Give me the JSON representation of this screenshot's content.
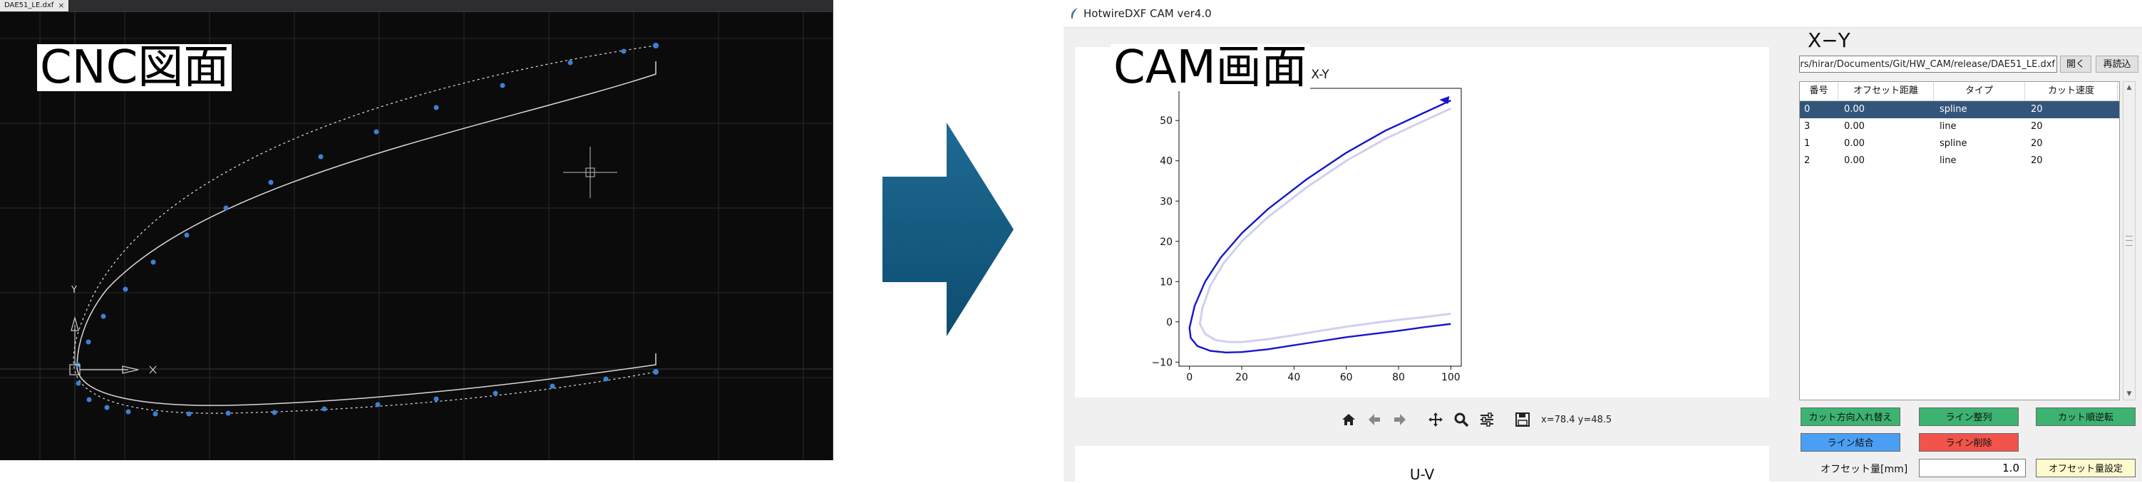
{
  "cad": {
    "tab_label": "DAE51_LE.dxf",
    "tab_close": "×",
    "caption": "CNC図面",
    "axis_y": "Y",
    "axis_x": "X"
  },
  "cam": {
    "window_title": "HotwireDXF CAM ver4.0",
    "caption": "CAM画面",
    "side_title": "X−Y",
    "file_path": "rs/hirar/Documents/Git/HW_CAM/release/DAE51_LE.dxf",
    "open_button": "開く",
    "reload_button": "再読込",
    "table": {
      "headers": [
        "番号",
        "オフセット距離",
        "タイプ",
        "カット速度"
      ],
      "rows": [
        [
          "0",
          "0.00",
          "spline",
          "20"
        ],
        [
          "3",
          "0.00",
          "line",
          "20"
        ],
        [
          "1",
          "0.00",
          "spline",
          "20"
        ],
        [
          "2",
          "0.00",
          "line",
          "20"
        ]
      ],
      "selected_row": 0
    },
    "buttons": {
      "swap_direction": "カット方向入れ替え",
      "sort_lines": "ライン整列",
      "reverse_cut": "カット順逆転",
      "merge_lines": "ライン結合",
      "delete_line": "ライン削除",
      "set_offset": "オフセット量設定"
    },
    "button_colors": {
      "green": "#3cb371",
      "blue": "#4a9ff5",
      "red": "#f0544a",
      "yellow": "#fffacd"
    },
    "offset_label": "オフセット量[mm]",
    "offset_value": "1.0",
    "toolbar_icons": [
      "home-icon",
      "back-icon",
      "forward-icon",
      "pan-icon",
      "zoom-icon",
      "configure-icon",
      "save-icon"
    ],
    "coord_readout": "x=78.4 y=48.5",
    "second_plot_title": "U-V"
  },
  "chart_data": {
    "type": "line",
    "title": "X-Y",
    "xlabel": "",
    "ylabel": "",
    "xlim": [
      -4,
      104
    ],
    "ylim": [
      -11,
      58
    ],
    "xticks": [
      0,
      20,
      40,
      60,
      80,
      100
    ],
    "yticks": [
      -10,
      0,
      10,
      20,
      30,
      40,
      50
    ],
    "grid": false,
    "series": [
      {
        "color": "#1515cc",
        "x": [
          100,
          90,
          75,
          60,
          45,
          30,
          20,
          12,
          6,
          2,
          0,
          0.5,
          3,
          8,
          14,
          20,
          30,
          40,
          50,
          60,
          70,
          80,
          90,
          100
        ],
        "y": [
          55,
          52,
          47.5,
          42,
          35.5,
          28,
          22,
          16,
          10,
          4,
          -1.5,
          -4,
          -6,
          -7.2,
          -7.6,
          -7.5,
          -6.8,
          -5.8,
          -4.8,
          -3.8,
          -3,
          -2.2,
          -1.3,
          -0.5
        ]
      },
      {
        "color": "#d0d0ee",
        "x": [
          100,
          90,
          75,
          60,
          45,
          30,
          20,
          13,
          8,
          5,
          4,
          6,
          10,
          15,
          20,
          30,
          40,
          50,
          60,
          70,
          80,
          90,
          100
        ],
        "y": [
          53,
          50,
          45.5,
          40,
          33.5,
          26,
          20,
          14.5,
          9,
          3.5,
          -0.5,
          -3,
          -4.5,
          -5,
          -5,
          -4.3,
          -3.3,
          -2.2,
          -1.2,
          -0.3,
          0.5,
          1.2,
          2
        ]
      }
    ]
  }
}
